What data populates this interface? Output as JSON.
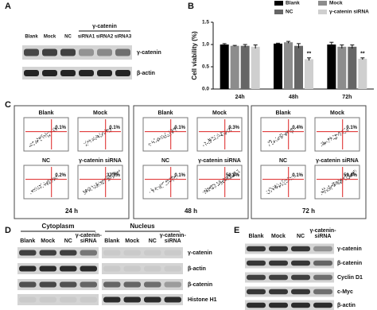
{
  "panel_labels": [
    "A",
    "B",
    "C",
    "D",
    "E"
  ],
  "panel_a": {
    "group_label": "γ-catenin",
    "lanes": [
      "Blank",
      "Mock",
      "NC",
      "siRNA1",
      "siRNA2",
      "siRNA3"
    ],
    "rows": [
      "γ-catenin",
      "β-actin"
    ]
  },
  "chart_data": {
    "type": "bar",
    "y_label": "Cell viability (%)",
    "categories": [
      "24h",
      "48h",
      "72h"
    ],
    "series": [
      {
        "name": "Blank",
        "color": "#000000",
        "values": [
          1.0,
          1.02,
          1.0
        ],
        "errors": [
          0.02,
          0.01,
          0.05
        ]
      },
      {
        "name": "Mock",
        "color": "#8c8c8c",
        "values": [
          0.97,
          1.05,
          0.95
        ],
        "errors": [
          0.01,
          0.02,
          0.04
        ]
      },
      {
        "name": "NC",
        "color": "#666666",
        "values": [
          0.97,
          0.97,
          0.95
        ],
        "errors": [
          0.03,
          0.05,
          0.04
        ]
      },
      {
        "name": "γ-catenin siRNA",
        "color": "#cfcfcf",
        "values": [
          0.95,
          0.67,
          0.68
        ],
        "errors": [
          0.04,
          0.03,
          0.02
        ]
      }
    ],
    "annotations": [
      {
        "text": "**",
        "x": "48h"
      },
      {
        "text": "**",
        "x": "72h"
      }
    ],
    "ylim": [
      0,
      1.5
    ],
    "yticks": [
      {
        "value": 0,
        "label": "0.0"
      },
      0.5,
      {
        "value": 1,
        "label": "1.0"
      },
      1.5
    ]
  },
  "panel_c": {
    "conditions": [
      "Blank",
      "Mock",
      "NC",
      "γ-catenin siRNA"
    ],
    "times": [
      {
        "label": "24 h",
        "percentages": [
          "0.1%",
          "0.1%",
          "0.2%",
          "37.7%"
        ]
      },
      {
        "label": "48 h",
        "percentages": [
          "0.1%",
          "0.3%",
          "0.1%",
          "50.8%"
        ]
      },
      {
        "label": "72 h",
        "percentages": [
          "0.4%",
          "0.1%",
          "0.1%",
          "59.4%"
        ]
      }
    ]
  },
  "panel_d": {
    "compartments": [
      "Cytoplasm",
      "Nucleus"
    ],
    "lanes": [
      "Blank",
      "Mock",
      "NC",
      "γ-catenin-siRNA"
    ],
    "rows": [
      "γ-catenin",
      "β-actin",
      "β-catenin",
      "Histone H1"
    ]
  },
  "panel_e": {
    "lanes": [
      "Blank",
      "Mock",
      "NC",
      "γ-catenin-siRNA"
    ],
    "rows": [
      "γ-catenin",
      "β-catenin",
      "Cyclin D1",
      "c-Myc",
      "β-actin"
    ]
  }
}
